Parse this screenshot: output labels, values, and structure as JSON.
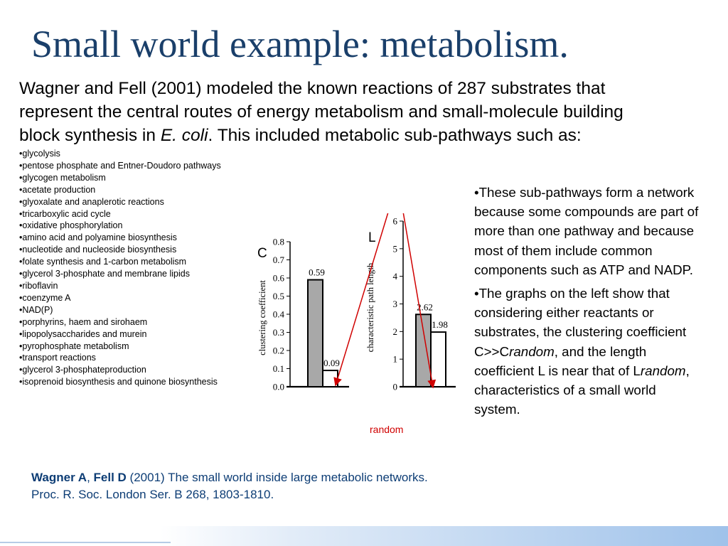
{
  "slide": {
    "title": "Small world example: metabolism.",
    "intro": {
      "line1": "Wagner and Fell (2001) modeled the known reactions of 287 substrates that",
      "line2": "represent the central routes of energy metabolism and small-molecule building",
      "line3_before": "block synthesis in ",
      "line3_italic": "E. coli",
      "line3_after": ". This included metabolic sub-pathways such as:"
    },
    "subpathways": [
      "glycolysis",
      "pentose phosphate and Entner-Doudoro pathways",
      "glycogen metabolism",
      "acetate production",
      "glyoxalate and anaplerotic reactions",
      "tricarboxylic acid cycle",
      "oxidative phosphorylation",
      "amino acid and polyamine biosynthesis",
      "nucleotide and nucleoside biosynthesis",
      "folate synthesis and 1-carbon metabolism",
      "glycerol 3-phosphate and membrane lipids",
      "riboflavin",
      "coenzyme A",
      "NAD(P)",
      "porphyrins, haem and sirohaem",
      "lipopolysaccharides and murein",
      "pyrophosphate metabolism",
      "transport reactions",
      "glycerol 3-phosphateproduction",
      "isoprenoid biosynthesis and quinone biosynthesis"
    ],
    "right_text": {
      "p1": "These sub-pathways form a network because some compounds are part of more than one pathway and because most of them include common components such as ATP and NADP.",
      "p2_a": "The graphs on the left show that considering either reactants or substrates, the clustering coefficient C>>C",
      "p2_i1": "random",
      "p2_b": ", and the length coefficient L is near that of L",
      "p2_i2": "random",
      "p2_c": ", characteristics of a small world system."
    },
    "citation": {
      "author1": "Wagner A",
      "sep": ", ",
      "author2": "Fell D",
      "rest": " (2001) The small world inside large metabolic networks. Proc. R. Soc. London Ser. B 268, 1803-1810."
    },
    "random_label": "random",
    "colors": {
      "title": "#1a3f6a",
      "citation": "#0d3d75",
      "arrow": "#d00000",
      "bar_gray": "#a8a8a8"
    }
  },
  "chart_data": [
    {
      "type": "bar",
      "panel_label": "C",
      "ylabel": "clustering coefficient",
      "categories": [
        "",
        ""
      ],
      "values": [
        0.59,
        0.09
      ],
      "data_labels": [
        "0.59",
        "0.09"
      ],
      "fills": [
        "gray",
        "white"
      ],
      "ylim": [
        0,
        0.8
      ],
      "yticks": [
        "0.0",
        "0.1",
        "0.2",
        "0.3",
        "0.4",
        "0.5",
        "0.6",
        "0.7",
        "0.8"
      ]
    },
    {
      "type": "bar",
      "panel_label": "L",
      "ylabel": "characteristic path length",
      "categories": [
        "",
        ""
      ],
      "values": [
        2.62,
        1.98
      ],
      "data_labels": [
        "2.62",
        "1.98"
      ],
      "fills": [
        "gray",
        "white"
      ],
      "ylim": [
        0,
        6
      ],
      "yticks": [
        "0",
        "1",
        "2",
        "3",
        "4",
        "5",
        "6"
      ]
    }
  ]
}
